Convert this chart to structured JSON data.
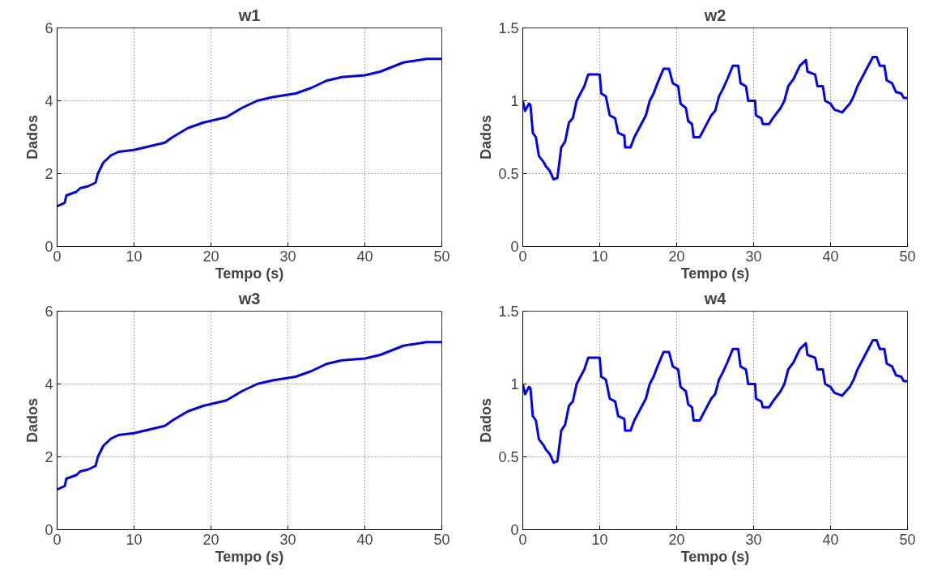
{
  "chart_data": [
    {
      "type": "line",
      "title": "w1",
      "xlabel": "Tempo (s)",
      "ylabel": "Dados",
      "xlim": [
        0,
        50
      ],
      "ylim": [
        0,
        6
      ],
      "xticks": [
        0,
        10,
        20,
        30,
        40,
        50
      ],
      "yticks": [
        0,
        2,
        4,
        6
      ],
      "grid": true,
      "line_style": "solid",
      "x": [
        0,
        1,
        1.2,
        2.5,
        3,
        4,
        5,
        5.3,
        6,
        7,
        8,
        10,
        12,
        14,
        15,
        17,
        19,
        20,
        22,
        24,
        26,
        28,
        31,
        33,
        35,
        37,
        40,
        42,
        45,
        48,
        50
      ],
      "series": [
        {
          "color": "#0000ff",
          "values": [
            1.1,
            1.2,
            1.4,
            1.5,
            1.6,
            1.65,
            1.75,
            2.0,
            2.3,
            2.5,
            2.6,
            2.65,
            2.75,
            2.85,
            3.0,
            3.25,
            3.4,
            3.45,
            3.55,
            3.8,
            4.0,
            4.1,
            4.2,
            4.35,
            4.55,
            4.65,
            4.7,
            4.8,
            5.05,
            5.15,
            5.15
          ]
        }
      ]
    },
    {
      "type": "line",
      "title": "w2",
      "xlabel": "Tempo (s)",
      "ylabel": "Dados",
      "xlim": [
        0,
        50
      ],
      "ylim": [
        0,
        1.5
      ],
      "xticks": [
        0,
        10,
        20,
        30,
        40,
        50
      ],
      "yticks": [
        0,
        0.5,
        1,
        1.5
      ],
      "grid": true,
      "line_style": "solid",
      "x": [
        0,
        0.3,
        0.8,
        1.0,
        1.3,
        1.7,
        2.1,
        2.7,
        3.0,
        3.5,
        4.0,
        4.5,
        5.0,
        5.5,
        6.0,
        6.5,
        7.0,
        7.5,
        8.0,
        8.5,
        10,
        10.2,
        10.8,
        11.3,
        12,
        12.4,
        13.2,
        13.3,
        14,
        14.5,
        15.5,
        16,
        16.5,
        17,
        17.5,
        18.3,
        19,
        19.5,
        20.2,
        20.5,
        21.2,
        21.5,
        22,
        22.2,
        23,
        23.7,
        24.5,
        25,
        25.5,
        26,
        26.6,
        27.3,
        28,
        28.3,
        29,
        29.3,
        30.2,
        30.3,
        31,
        31.2,
        32,
        32.5,
        33.5,
        34,
        34.5,
        35.2,
        36,
        36.8,
        37,
        38,
        38.3,
        39,
        39.3,
        40,
        40.5,
        41.5,
        42.5,
        43,
        43.5,
        44,
        44.5,
        45.5,
        46,
        46.4,
        47,
        47.3,
        48,
        48.5,
        49.2,
        49.5,
        50
      ],
      "series": [
        {
          "color": "#0000ff",
          "values": [
            1.0,
            0.93,
            0.98,
            0.97,
            0.78,
            0.75,
            0.62,
            0.58,
            0.55,
            0.52,
            0.46,
            0.47,
            0.68,
            0.72,
            0.85,
            0.88,
            1.0,
            1.05,
            1.1,
            1.18,
            1.18,
            1.05,
            1.03,
            0.9,
            0.88,
            0.78,
            0.76,
            0.68,
            0.68,
            0.75,
            0.85,
            0.9,
            1.0,
            1.05,
            1.12,
            1.22,
            1.22,
            1.12,
            1.1,
            0.98,
            0.95,
            0.86,
            0.84,
            0.75,
            0.75,
            0.82,
            0.9,
            0.93,
            1.03,
            1.08,
            1.15,
            1.24,
            1.24,
            1.12,
            1.1,
            1.0,
            1.0,
            0.9,
            0.88,
            0.84,
            0.84,
            0.88,
            0.95,
            1.0,
            1.1,
            1.15,
            1.24,
            1.28,
            1.2,
            1.18,
            1.1,
            1.1,
            1.0,
            0.98,
            0.94,
            0.92,
            0.98,
            1.03,
            1.1,
            1.15,
            1.2,
            1.3,
            1.3,
            1.24,
            1.24,
            1.14,
            1.12,
            1.06,
            1.05,
            1.02,
            1.02
          ]
        }
      ]
    },
    {
      "type": "line",
      "title": "w3",
      "xlabel": "Tempo (s)",
      "ylabel": "Dados",
      "xlim": [
        0,
        50
      ],
      "ylim": [
        0,
        6
      ],
      "xticks": [
        0,
        10,
        20,
        30,
        40,
        50
      ],
      "yticks": [
        0,
        2,
        4,
        6
      ],
      "grid": true,
      "line_style": "solid",
      "x": [
        0,
        1,
        1.2,
        2.5,
        3,
        4,
        5,
        5.3,
        6,
        7,
        8,
        10,
        12,
        14,
        15,
        17,
        19,
        20,
        22,
        24,
        26,
        28,
        31,
        33,
        35,
        37,
        40,
        42,
        45,
        48,
        50
      ],
      "series": [
        {
          "color": "#0000ff",
          "values": [
            1.1,
            1.2,
            1.4,
            1.5,
            1.6,
            1.65,
            1.75,
            2.0,
            2.3,
            2.5,
            2.6,
            2.65,
            2.75,
            2.85,
            3.0,
            3.25,
            3.4,
            3.45,
            3.55,
            3.8,
            4.0,
            4.1,
            4.2,
            4.35,
            4.55,
            4.65,
            4.7,
            4.8,
            5.05,
            5.15,
            5.15
          ]
        }
      ]
    },
    {
      "type": "line",
      "title": "w4",
      "xlabel": "Tempo (s)",
      "ylabel": "Dados",
      "xlim": [
        0,
        50
      ],
      "ylim": [
        0,
        1.5
      ],
      "xticks": [
        0,
        10,
        20,
        30,
        40,
        50
      ],
      "yticks": [
        0,
        0.5,
        1,
        1.5
      ],
      "grid": true,
      "line_style": "solid",
      "x": [
        0,
        0.3,
        0.8,
        1.0,
        1.3,
        1.7,
        2.1,
        2.7,
        3.0,
        3.5,
        4.0,
        4.5,
        5.0,
        5.5,
        6.0,
        6.5,
        7.0,
        7.5,
        8.0,
        8.5,
        10,
        10.2,
        10.8,
        11.3,
        12,
        12.4,
        13.2,
        13.3,
        14,
        14.5,
        15.5,
        16,
        16.5,
        17,
        17.5,
        18.3,
        19,
        19.5,
        20.2,
        20.5,
        21.2,
        21.5,
        22,
        22.2,
        23,
        23.7,
        24.5,
        25,
        25.5,
        26,
        26.6,
        27.3,
        28,
        28.3,
        29,
        29.3,
        30.2,
        30.3,
        31,
        31.2,
        32,
        32.5,
        33.5,
        34,
        34.5,
        35.2,
        36,
        36.8,
        37,
        38,
        38.3,
        39,
        39.3,
        40,
        40.5,
        41.5,
        42.5,
        43,
        43.5,
        44,
        44.5,
        45.5,
        46,
        46.4,
        47,
        47.3,
        48,
        48.5,
        49.2,
        49.5,
        50
      ],
      "series": [
        {
          "color": "#0000ff",
          "values": [
            1.0,
            0.93,
            0.98,
            0.97,
            0.78,
            0.75,
            0.62,
            0.58,
            0.55,
            0.52,
            0.46,
            0.47,
            0.68,
            0.72,
            0.85,
            0.88,
            1.0,
            1.05,
            1.1,
            1.18,
            1.18,
            1.05,
            1.03,
            0.9,
            0.88,
            0.78,
            0.76,
            0.68,
            0.68,
            0.75,
            0.85,
            0.9,
            1.0,
            1.05,
            1.12,
            1.22,
            1.22,
            1.12,
            1.1,
            0.98,
            0.95,
            0.86,
            0.84,
            0.75,
            0.75,
            0.82,
            0.9,
            0.93,
            1.03,
            1.08,
            1.15,
            1.24,
            1.24,
            1.12,
            1.1,
            1.0,
            1.0,
            0.9,
            0.88,
            0.84,
            0.84,
            0.88,
            0.95,
            1.0,
            1.1,
            1.15,
            1.24,
            1.28,
            1.2,
            1.18,
            1.1,
            1.1,
            1.0,
            0.98,
            0.94,
            0.92,
            0.98,
            1.03,
            1.1,
            1.15,
            1.2,
            1.3,
            1.3,
            1.24,
            1.24,
            1.14,
            1.12,
            1.06,
            1.05,
            1.02,
            1.02
          ]
        }
      ]
    }
  ]
}
